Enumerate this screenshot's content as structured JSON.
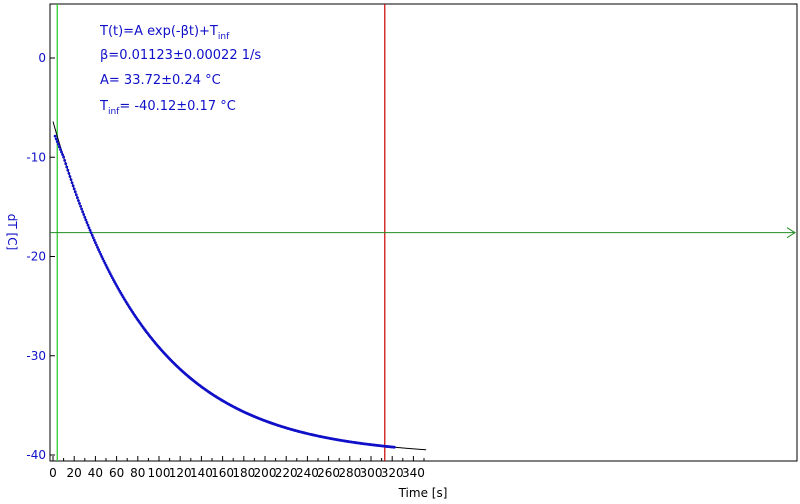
{
  "chart_data": {
    "type": "scatter",
    "xlabel": "Time [s]",
    "ylabel": "dT [C]",
    "xlim": [
      0,
      352
    ],
    "ylim": [
      -40.2,
      5.5
    ],
    "x_ticks": [
      0,
      20,
      40,
      60,
      80,
      100,
      120,
      140,
      160,
      180,
      200,
      220,
      240,
      260,
      280,
      300,
      320,
      340
    ],
    "y_ticks": [
      0,
      -10,
      -20,
      -30,
      -40
    ],
    "grid": false,
    "fit": {
      "A": 33.72,
      "beta": 0.01123,
      "T_inf": -40.12
    },
    "measured": {
      "t_start": 2,
      "t_end": 322,
      "step": 1
    },
    "cursors": {
      "green_vertical_x": 4,
      "red_vertical_x": 313,
      "green_horizontal_y": -17.6
    },
    "annotations": {
      "line1_main": "T(t)=A exp(-βt)+T",
      "line1_sub": "inf",
      "line2": "β=0.01123±0.00022 1/s",
      "line3": "A= 33.72±0.24 °C",
      "line4_prefix": "T",
      "line4_sub": "inf",
      "line4_rest": "= -40.12±0.17 °C"
    },
    "colors": {
      "data": "#1010c8",
      "fit": "#000000",
      "axis_text": "#1010c8",
      "green_cursor": "#22c822",
      "red_cursor": "#cc0000",
      "h_cursor": "#228b22"
    }
  }
}
